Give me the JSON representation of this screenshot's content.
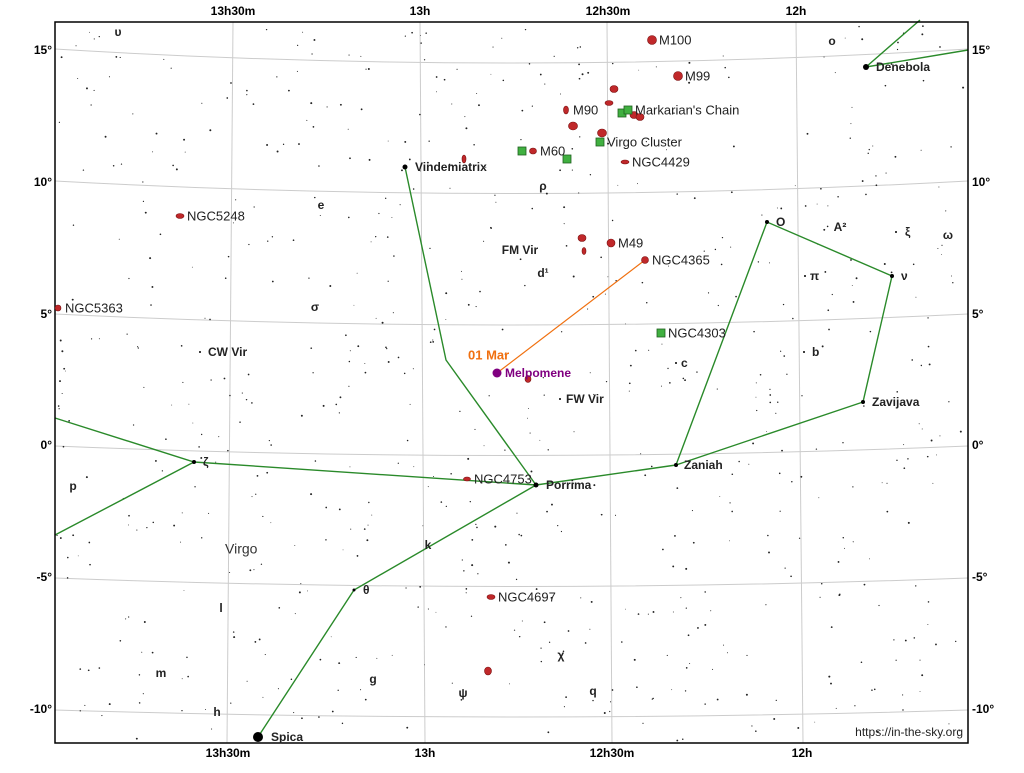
{
  "ra_labels": [
    "13h30m",
    "13h",
    "12h30m",
    "12h"
  ],
  "dec_labels": [
    "15°",
    "10°",
    "5°",
    "0°",
    "-5°",
    "-10°"
  ],
  "constellation": "Virgo",
  "stars": [
    "Denebola",
    "Vindemiatrix",
    "Porrima",
    "Spica",
    "Zaniah",
    "Zavijava",
    "ζ",
    "θ",
    "O",
    "ν",
    "CW Vir",
    "FW Vir",
    "FM Vir",
    "π",
    "ρ",
    "d¹",
    "c",
    "b",
    "A²",
    "ξ",
    "ω",
    "e",
    "σ",
    "υ",
    "o",
    "k",
    "l",
    "m",
    "g",
    "h",
    "ψ",
    "χ",
    "q",
    "p"
  ],
  "deep_sky": [
    "M100",
    "M99",
    "M90",
    "Markarian's Chain",
    "Virgo Cluster",
    "M60",
    "NGC4429",
    "M49",
    "NGC4365",
    "NGC5248",
    "NGC5363",
    "NGC4303",
    "NGC4753",
    "NGC4697"
  ],
  "planet": {
    "name": "Melpomene",
    "date": "01 Mar"
  },
  "credit": "https://in-the-sky.org"
}
